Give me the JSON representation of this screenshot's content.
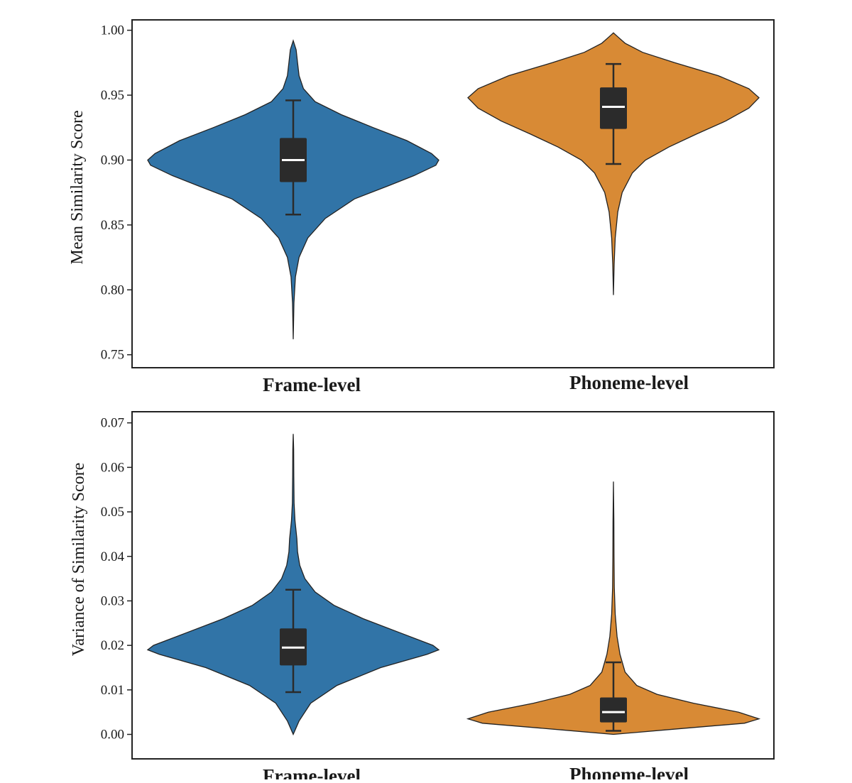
{
  "colors": {
    "frame_level": "#3174a7",
    "phoneme_level": "#d88a35",
    "box": "#2b2b2b",
    "median": "#ffffff",
    "outline": "#222222"
  },
  "chart_data": [
    {
      "type": "violin",
      "categories": [
        "Frame-level",
        "Phoneme-level"
      ],
      "ylabel": "Mean Similarity Score",
      "ylim": [
        0.74,
        1.008
      ],
      "yticks": [
        "0.75",
        "0.80",
        "0.85",
        "0.90",
        "0.95",
        "1.00"
      ],
      "series": [
        {
          "category": "Frame-level",
          "color_key": "frame_level",
          "min": 0.762,
          "max": 0.992,
          "q1": 0.883,
          "median": 0.9,
          "q3": 0.917,
          "whisker_low": 0.858,
          "whisker_high": 0.946,
          "density": [
            [
              0.762,
              0.0
            ],
            [
              0.79,
              0.005
            ],
            [
              0.81,
              0.015
            ],
            [
              0.825,
              0.04
            ],
            [
              0.84,
              0.1
            ],
            [
              0.855,
              0.22
            ],
            [
              0.87,
              0.42
            ],
            [
              0.88,
              0.65
            ],
            [
              0.888,
              0.83
            ],
            [
              0.896,
              0.98
            ],
            [
              0.9,
              1.0
            ],
            [
              0.905,
              0.95
            ],
            [
              0.915,
              0.78
            ],
            [
              0.925,
              0.55
            ],
            [
              0.935,
              0.33
            ],
            [
              0.945,
              0.15
            ],
            [
              0.955,
              0.07
            ],
            [
              0.965,
              0.04
            ],
            [
              0.975,
              0.03
            ],
            [
              0.985,
              0.02
            ],
            [
              0.992,
              0.0
            ]
          ]
        },
        {
          "category": "Phoneme-level",
          "color_key": "phoneme_level",
          "min": 0.796,
          "max": 0.998,
          "q1": 0.924,
          "median": 0.941,
          "q3": 0.956,
          "whisker_low": 0.897,
          "whisker_high": 0.974,
          "density": [
            [
              0.796,
              0.0
            ],
            [
              0.82,
              0.005
            ],
            [
              0.84,
              0.012
            ],
            [
              0.86,
              0.03
            ],
            [
              0.875,
              0.06
            ],
            [
              0.89,
              0.13
            ],
            [
              0.9,
              0.22
            ],
            [
              0.91,
              0.38
            ],
            [
              0.92,
              0.57
            ],
            [
              0.93,
              0.77
            ],
            [
              0.94,
              0.93
            ],
            [
              0.948,
              1.0
            ],
            [
              0.955,
              0.93
            ],
            [
              0.965,
              0.72
            ],
            [
              0.975,
              0.42
            ],
            [
              0.983,
              0.2
            ],
            [
              0.99,
              0.08
            ],
            [
              0.995,
              0.03
            ],
            [
              0.998,
              0.0
            ]
          ]
        }
      ]
    },
    {
      "type": "violin",
      "categories": [
        "Frame-level",
        "Phoneme-level"
      ],
      "ylabel": "Variance of Similarity Score",
      "ylim": [
        -0.0055,
        0.0725
      ],
      "yticks": [
        "0.00",
        "0.01",
        "0.02",
        "0.03",
        "0.04",
        "0.05",
        "0.06",
        "0.07"
      ],
      "series": [
        {
          "category": "Frame-level",
          "color_key": "frame_level",
          "min": 0.0,
          "max": 0.0675,
          "q1": 0.0155,
          "median": 0.0195,
          "q3": 0.0238,
          "whisker_low": 0.0095,
          "whisker_high": 0.0325,
          "density": [
            [
              0.0,
              0.0
            ],
            [
              0.003,
              0.04
            ],
            [
              0.007,
              0.12
            ],
            [
              0.011,
              0.3
            ],
            [
              0.015,
              0.6
            ],
            [
              0.018,
              0.92
            ],
            [
              0.019,
              1.0
            ],
            [
              0.02,
              0.96
            ],
            [
              0.023,
              0.72
            ],
            [
              0.026,
              0.48
            ],
            [
              0.029,
              0.28
            ],
            [
              0.032,
              0.15
            ],
            [
              0.035,
              0.08
            ],
            [
              0.038,
              0.045
            ],
            [
              0.041,
              0.03
            ],
            [
              0.044,
              0.025
            ],
            [
              0.048,
              0.012
            ],
            [
              0.052,
              0.006
            ],
            [
              0.058,
              0.004
            ],
            [
              0.064,
              0.003
            ],
            [
              0.0675,
              0.0
            ]
          ]
        },
        {
          "category": "Phoneme-level",
          "color_key": "phoneme_level",
          "min": 0.0,
          "max": 0.0568,
          "q1": 0.0027,
          "median": 0.005,
          "q3": 0.0083,
          "whisker_low": 0.0008,
          "whisker_high": 0.0162,
          "density": [
            [
              0.0,
              0.0
            ],
            [
              0.001,
              0.35
            ],
            [
              0.0025,
              0.9
            ],
            [
              0.0035,
              1.0
            ],
            [
              0.005,
              0.86
            ],
            [
              0.007,
              0.55
            ],
            [
              0.009,
              0.3
            ],
            [
              0.011,
              0.16
            ],
            [
              0.014,
              0.08
            ],
            [
              0.018,
              0.045
            ],
            [
              0.022,
              0.025
            ],
            [
              0.027,
              0.012
            ],
            [
              0.033,
              0.006
            ],
            [
              0.04,
              0.004
            ],
            [
              0.048,
              0.003
            ],
            [
              0.0568,
              0.0
            ]
          ]
        }
      ]
    }
  ]
}
